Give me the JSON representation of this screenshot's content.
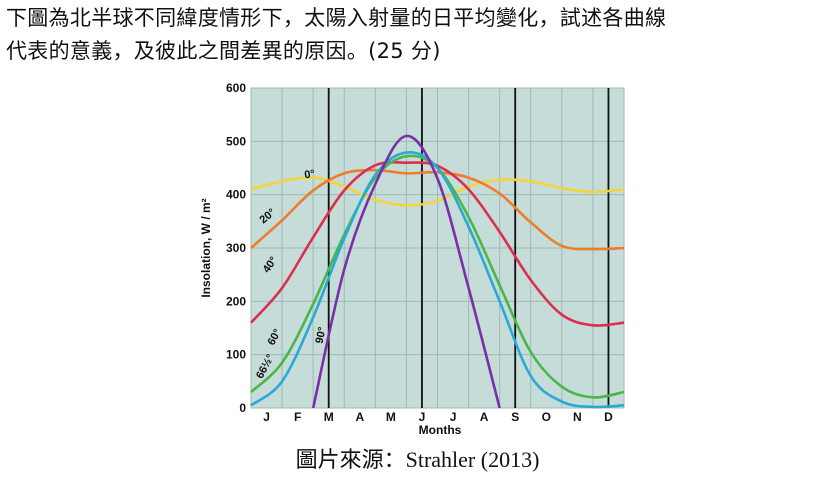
{
  "question": {
    "line1": "下圖為北半球不同緯度情形下，太陽入射量的日平均變化，試述各曲線",
    "line2": "代表的意義，及彼此之間差異的原因。(25 分)"
  },
  "caption": {
    "prefix": "圖片來源：",
    "source": "Strahler (2013)"
  },
  "chart_data": {
    "type": "line",
    "title": "",
    "xlabel": "Months",
    "ylabel": "Insolation, W / m²",
    "ylim": [
      0,
      600
    ],
    "yticks": [
      "0",
      "100",
      "200",
      "300",
      "400",
      "500",
      "600"
    ],
    "categories": [
      "J",
      "F",
      "M",
      "A",
      "M",
      "J",
      "J",
      "A",
      "S",
      "O",
      "N",
      "D"
    ],
    "x": [
      0,
      1,
      2,
      3,
      4,
      5,
      6,
      7,
      8,
      9,
      10,
      11,
      12
    ],
    "vertical_markers": [
      "M",
      "J",
      "S",
      "D"
    ],
    "series": [
      {
        "name": "0°",
        "color": "#f5d33a",
        "values": [
          410,
          425,
          432,
          415,
          390,
          380,
          388,
          415,
          428,
          425,
          412,
          405,
          410
        ]
      },
      {
        "name": "20°",
        "color": "#ee7d2b",
        "values": [
          300,
          352,
          408,
          440,
          446,
          440,
          442,
          432,
          402,
          348,
          304,
          298,
          300
        ]
      },
      {
        "name": "40°",
        "color": "#dc2e4d",
        "values": [
          160,
          225,
          320,
          408,
          455,
          460,
          454,
          410,
          330,
          240,
          175,
          155,
          160
        ]
      },
      {
        "name": "60°",
        "color": "#47b847",
        "values": [
          30,
          85,
          195,
          325,
          432,
          472,
          450,
          358,
          230,
          105,
          40,
          20,
          30
        ]
      },
      {
        "name": "66½°",
        "color": "#29a9d4",
        "values": [
          5,
          50,
          170,
          318,
          437,
          479,
          450,
          340,
          200,
          60,
          12,
          2,
          5
        ]
      },
      {
        "name": "90°",
        "color": "#7a2fa8",
        "values": [
          null,
          null,
          0,
          260,
          420,
          510,
          430,
          225,
          0,
          null,
          null,
          null,
          null
        ]
      }
    ]
  }
}
